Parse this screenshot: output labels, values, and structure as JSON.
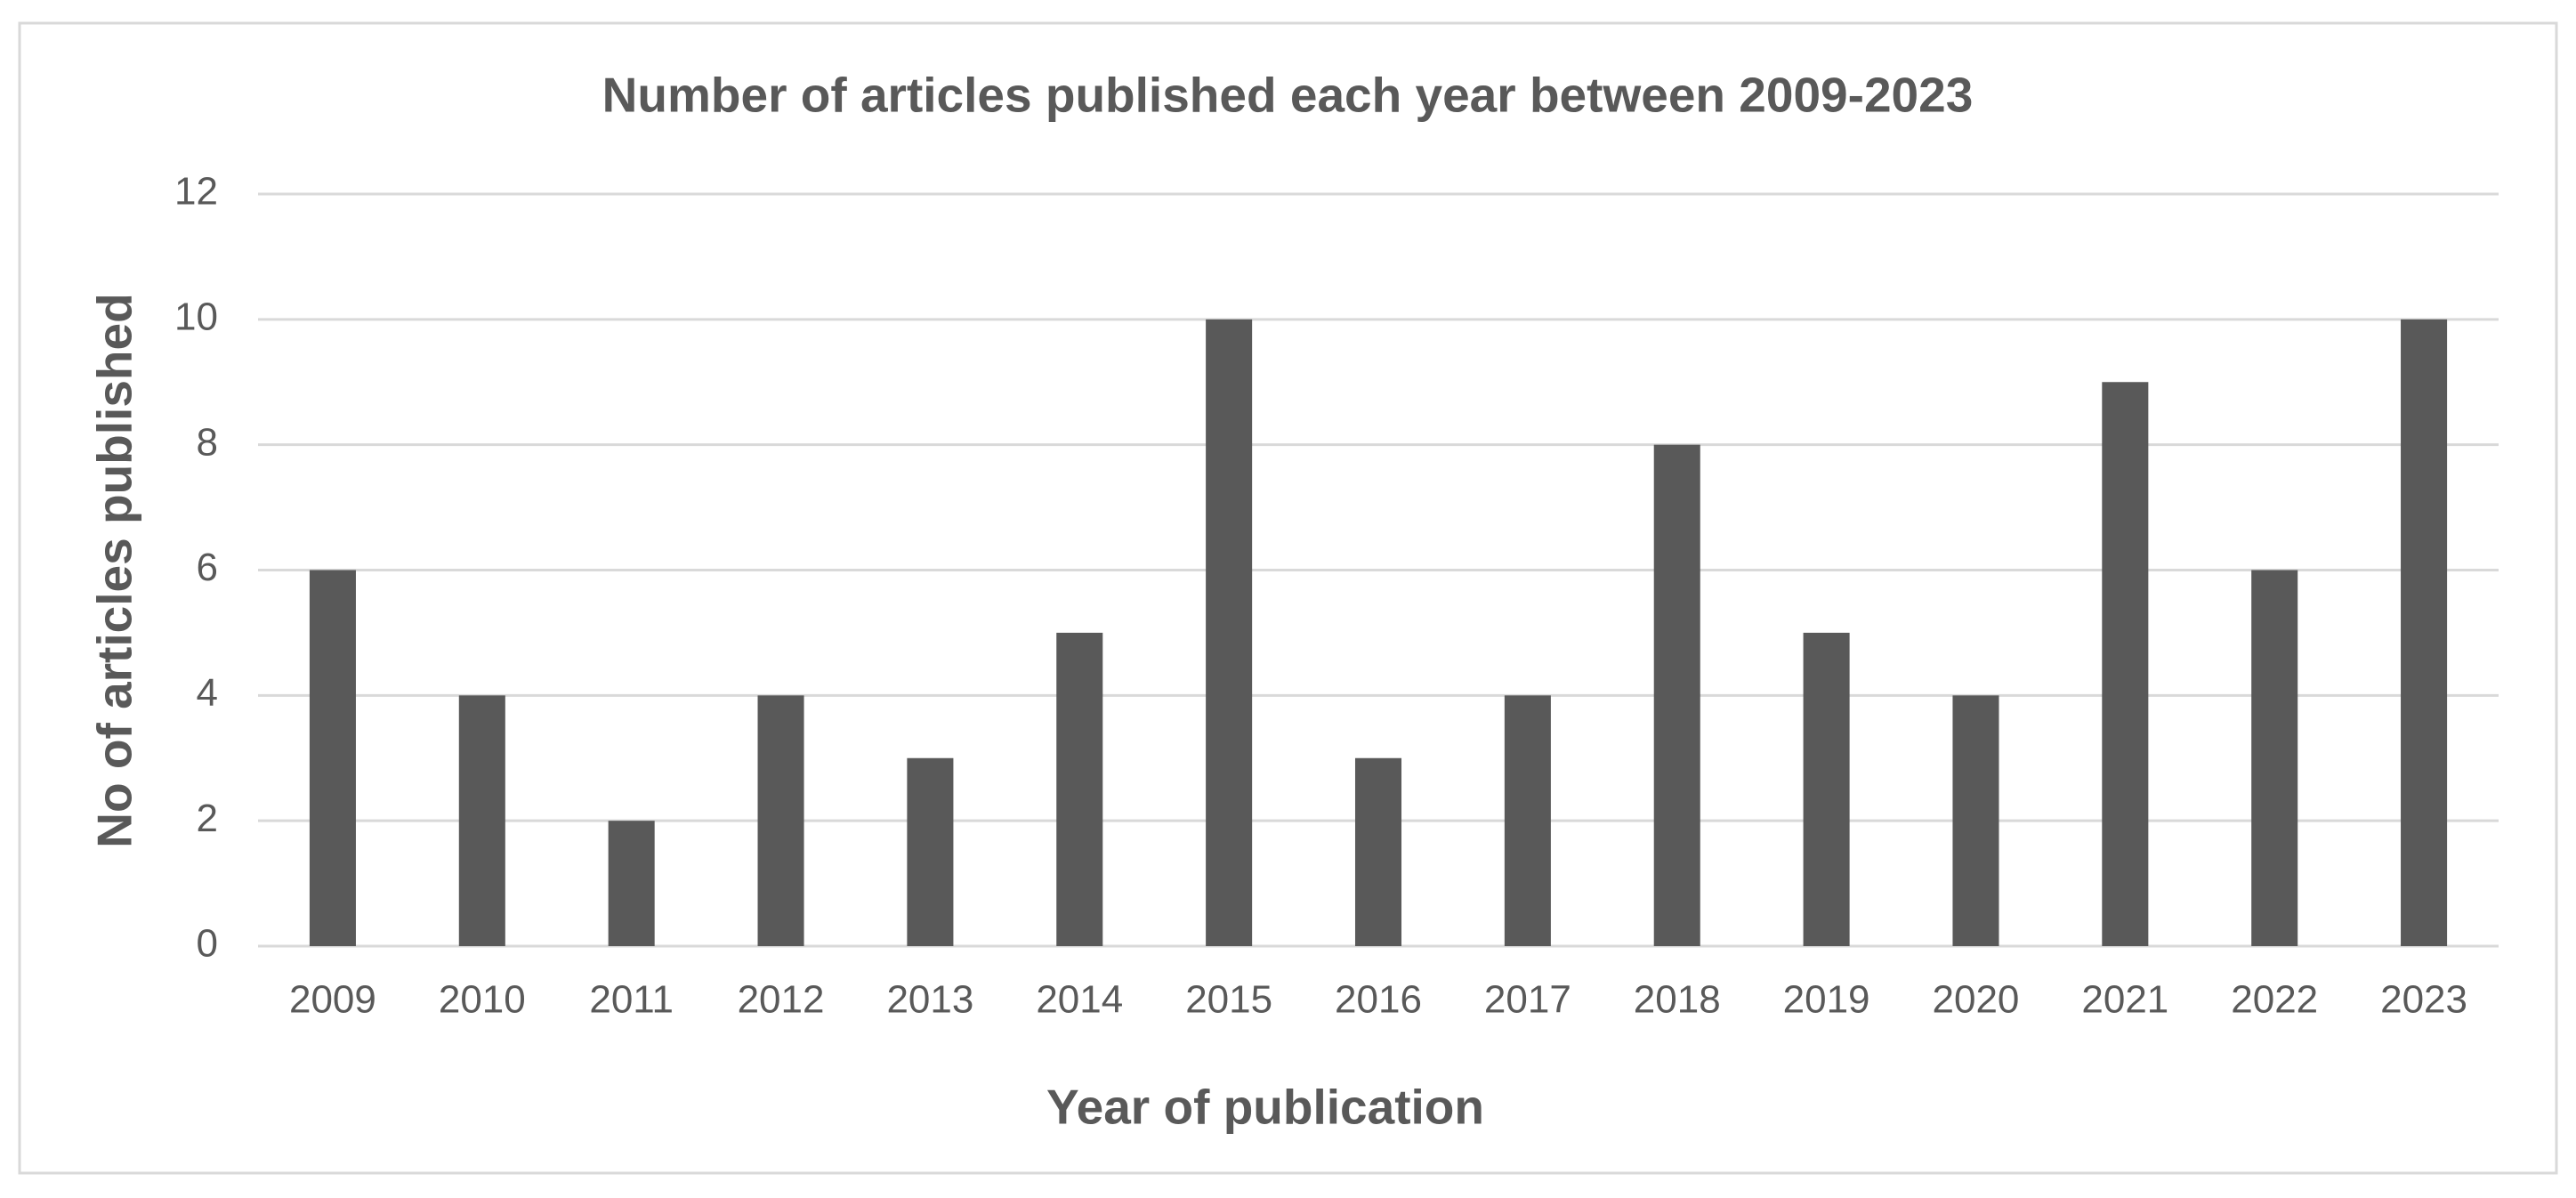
{
  "chart_data": {
    "type": "bar",
    "title": "Number of articles published each year between 2009-2023",
    "x_label": "Year of publication",
    "y_label": "No of articles published",
    "categories": [
      "2009",
      "2010",
      "2011",
      "2012",
      "2013",
      "2014",
      "2015",
      "2016",
      "2017",
      "2018",
      "2019",
      "2020",
      "2021",
      "2022",
      "2023"
    ],
    "values": [
      6,
      4,
      2,
      4,
      3,
      5,
      10,
      3,
      4,
      8,
      5,
      4,
      9,
      6,
      10
    ],
    "color": "#595959",
    "ylim": [
      0,
      12
    ],
    "yticks": [
      0,
      2,
      4,
      6,
      8,
      10,
      12
    ],
    "grid": true
  }
}
